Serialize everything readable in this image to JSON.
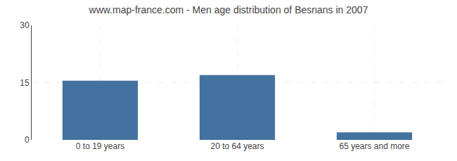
{
  "chart_data": {
    "type": "bar",
    "title": "www.map-france.com - Men age distribution of Besnans in 2007",
    "categories": [
      "0 to 19 years",
      "20 to 64 years",
      "65 years and more"
    ],
    "values": [
      15.5,
      17.0,
      2.0
    ],
    "color": "#4472a0",
    "ylim": [
      0,
      30
    ],
    "yticks": [
      0,
      15,
      30
    ],
    "grid": true
  }
}
